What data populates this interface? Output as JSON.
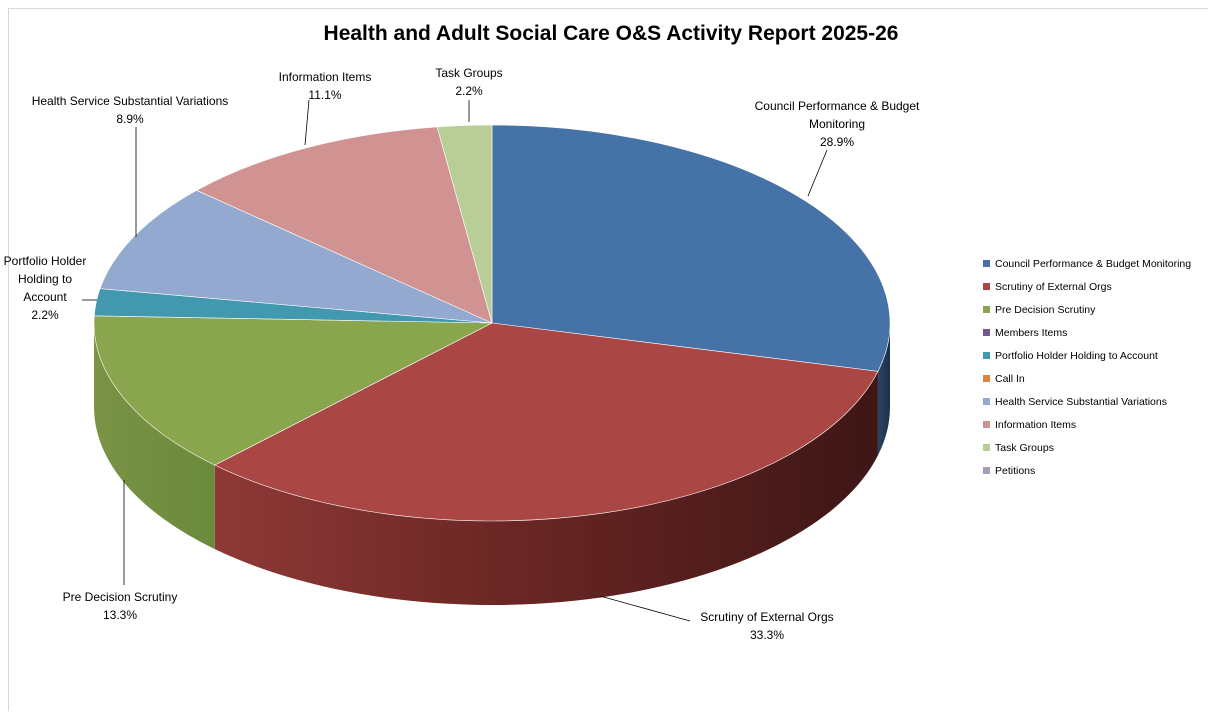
{
  "chart_data": {
    "type": "pie",
    "title": "Health and Adult Social Care O&S Activity Report 2025-26",
    "categories": [
      "Council Performance & Budget Monitoring",
      "Scrutiny of External Orgs",
      "Pre Decision Scrutiny",
      "Members Items",
      "Portfolio Holder Holding to Account",
      "Call In",
      "Health Service Substantial Variations",
      "Information Items",
      "Task Groups",
      "Petitions"
    ],
    "values": [
      28.9,
      33.3,
      13.3,
      0,
      2.2,
      0,
      8.9,
      11.1,
      2.2,
      0
    ],
    "value_labels": [
      "28.9%",
      "33.3%",
      "13.3%",
      "",
      "2.2%",
      "",
      "8.9%",
      "11.1%",
      "2.2%",
      ""
    ],
    "colors": [
      "#4572A7",
      "#AA4643",
      "#89A54E",
      "#71588F",
      "#4198AF",
      "#DB843D",
      "#93A9CF",
      "#D19392",
      "#B9CD96",
      "#A99BBD"
    ],
    "legend_position": "right",
    "slice_labels": [
      {
        "index": 0,
        "lines": [
          "Council Performance & Budget",
          "Monitoring",
          "28.9%"
        ]
      },
      {
        "index": 1,
        "lines": [
          "Scrutiny of External Orgs",
          "33.3%"
        ]
      },
      {
        "index": 2,
        "lines": [
          "Pre Decision Scrutiny",
          "13.3%"
        ]
      },
      {
        "index": 4,
        "lines": [
          "Portfolio Holder",
          "Holding to",
          "Account",
          "2.2%"
        ]
      },
      {
        "index": 6,
        "lines": [
          "Health Service Substantial Variations",
          "8.9%"
        ]
      },
      {
        "index": 7,
        "lines": [
          "Information Items",
          "11.1%"
        ]
      },
      {
        "index": 8,
        "lines": [
          "Task Groups",
          "2.2%"
        ]
      }
    ]
  }
}
